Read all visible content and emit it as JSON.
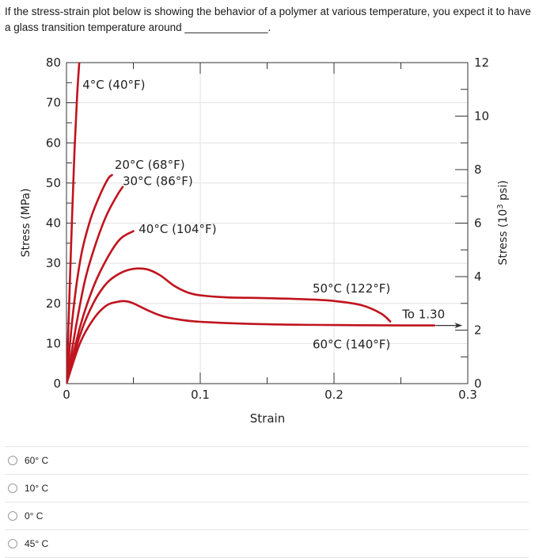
{
  "question": {
    "text": "If the stress-strain plot below is showing the behavior of a polymer at various temperature, you expect it to have a glass transition temperature around",
    "blank": "______________."
  },
  "chart_data": {
    "type": "line",
    "xlabel": "Strain",
    "ylabel": "Stress (MPa)",
    "y2label_prefix": "Stress (10",
    "y2label_sup": "3",
    "y2label_suffix": " psi)",
    "xlim": [
      0,
      0.3
    ],
    "ylim": [
      0,
      80
    ],
    "y2lim": [
      0,
      12
    ],
    "x_ticks": [
      {
        "value": 0,
        "label": "0"
      },
      {
        "value": 0.1,
        "label": "0.1"
      },
      {
        "value": 0.2,
        "label": "0.2"
      },
      {
        "value": 0.3,
        "label": "0.3"
      }
    ],
    "y_ticks": [
      {
        "value": 0,
        "label": "0"
      },
      {
        "value": 10,
        "label": "10"
      },
      {
        "value": 20,
        "label": "20"
      },
      {
        "value": 30,
        "label": "30"
      },
      {
        "value": 40,
        "label": "40"
      },
      {
        "value": 50,
        "label": "50"
      },
      {
        "value": 60,
        "label": "60"
      },
      {
        "value": 70,
        "label": "70"
      },
      {
        "value": 80,
        "label": "80"
      }
    ],
    "y2_ticks": [
      {
        "value": 0,
        "label": "0"
      },
      {
        "value": 2,
        "label": "2"
      },
      {
        "value": 4,
        "label": "4"
      },
      {
        "value": 6,
        "label": "6"
      },
      {
        "value": 8,
        "label": "8"
      },
      {
        "value": 10,
        "label": "10"
      },
      {
        "value": 12,
        "label": "12"
      }
    ],
    "grid": true,
    "line_color": "#c0141e",
    "series": [
      {
        "name": "4°C (40°F)",
        "x": [
          0,
          0.002,
          0.004,
          0.006,
          0.008,
          0.01
        ],
        "y": [
          0,
          20,
          40,
          58,
          72,
          82
        ]
      },
      {
        "name": "20°C (68°F)",
        "x": [
          0,
          0.005,
          0.011,
          0.018,
          0.025,
          0.031,
          0.034
        ],
        "y": [
          0,
          18,
          32,
          41,
          47,
          51,
          52
        ]
      },
      {
        "name": "30°C (86°F)",
        "x": [
          0,
          0.007,
          0.014,
          0.022,
          0.03,
          0.038,
          0.042
        ],
        "y": [
          0,
          14,
          26,
          35,
          42,
          47,
          49
        ]
      },
      {
        "name": "40°C (104°F)",
        "x": [
          0,
          0.01,
          0.02,
          0.03,
          0.04,
          0.05
        ],
        "y": [
          0,
          14,
          24,
          31,
          36,
          38
        ]
      },
      {
        "name": "50°C (122°F)",
        "x": [
          0,
          0.01,
          0.02,
          0.03,
          0.04,
          0.05,
          0.06,
          0.07,
          0.08,
          0.09,
          0.1,
          0.12,
          0.15,
          0.18,
          0.2,
          0.22,
          0.235,
          0.242
        ],
        "y": [
          0,
          12,
          20,
          25,
          27.5,
          28.6,
          28.5,
          27,
          24.5,
          22.8,
          22,
          21.5,
          21.3,
          21,
          20.6,
          19.6,
          17.5,
          15.5
        ]
      },
      {
        "name": "60°C (140°F)",
        "x": [
          0,
          0.01,
          0.02,
          0.03,
          0.04,
          0.045,
          0.05,
          0.06,
          0.07,
          0.08,
          0.1,
          0.15,
          0.2,
          0.25,
          0.275
        ],
        "y": [
          0,
          10,
          16,
          19.5,
          20.5,
          20.5,
          20,
          18.4,
          17,
          16.2,
          15.4,
          14.8,
          14.6,
          14.5,
          14.5
        ]
      }
    ],
    "annotations": [
      {
        "text": "4°C (40°F)",
        "x": 0.012,
        "y": 73.5
      },
      {
        "text": "20°C (68°F)",
        "x": 0.036,
        "y": 53.5
      },
      {
        "text": "30°C (86°F)",
        "x": 0.042,
        "y": 49.5
      },
      {
        "text": "40°C (104°F)",
        "x": 0.054,
        "y": 37.5
      },
      {
        "text": "50°C (122°F)",
        "x": 0.184,
        "y": 22.7
      },
      {
        "text": "60°C (140°F)",
        "x": 0.184,
        "y": 8.8
      },
      {
        "text": "To 1.30",
        "x": 0.251,
        "y": 16.3
      }
    ],
    "arrow": {
      "from_x": 0.276,
      "to_x": 0.296,
      "y": 14.5
    }
  },
  "answers": [
    {
      "label": "60° C"
    },
    {
      "label": "10° C"
    },
    {
      "label": "0° C"
    },
    {
      "label": "45° C"
    }
  ]
}
